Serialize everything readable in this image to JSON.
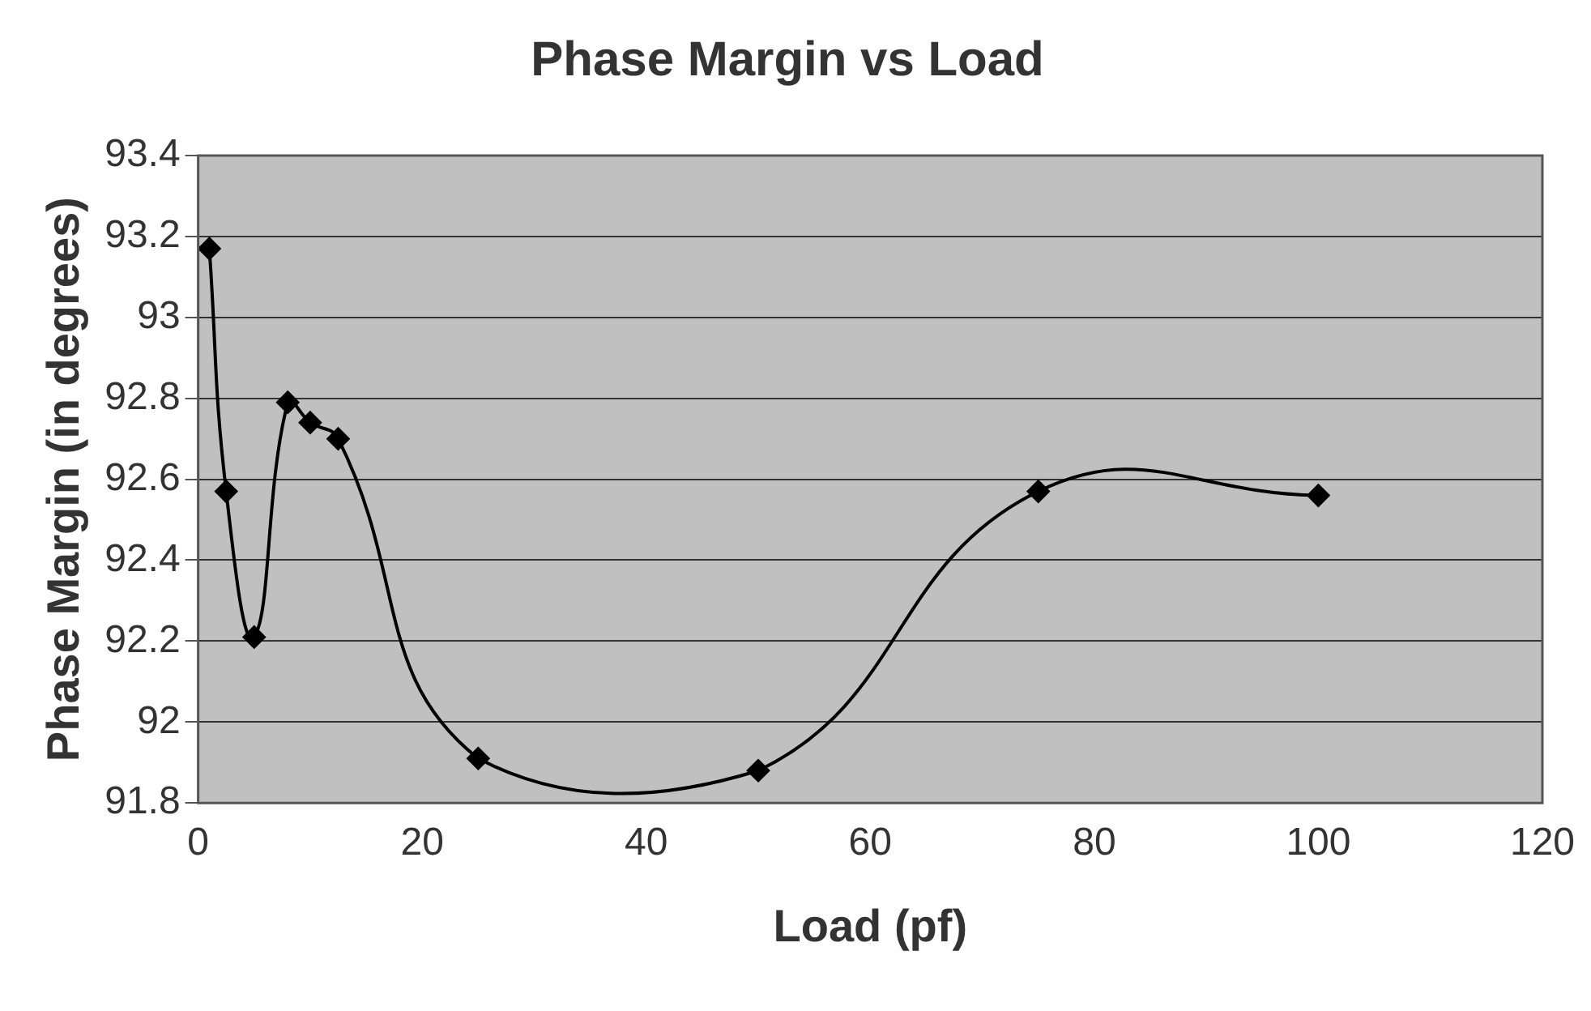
{
  "chart_data": {
    "type": "line",
    "title": "Phase Margin vs Load",
    "xlabel": "Load (pf)",
    "ylabel": "Phase Margin (in degrees)",
    "x": [
      1,
      2.5,
      5,
      8,
      10,
      12.5,
      25,
      50,
      75,
      100
    ],
    "series": [
      {
        "color": "#000000",
        "values": [
          93.17,
          92.57,
          92.21,
          92.79,
          92.74,
          92.7,
          91.91,
          91.88,
          92.57,
          92.56
        ]
      }
    ],
    "xlim": [
      0,
      120
    ],
    "xticks": [
      0,
      20,
      40,
      60,
      80,
      100,
      120
    ],
    "ylim": [
      91.8,
      93.4
    ],
    "yticks": [
      91.8,
      92,
      92.2,
      92.4,
      92.6,
      92.8,
      93,
      93.2,
      93.4
    ],
    "grid": "y",
    "legend": false,
    "marker": "diamond",
    "line_style": "solid"
  }
}
